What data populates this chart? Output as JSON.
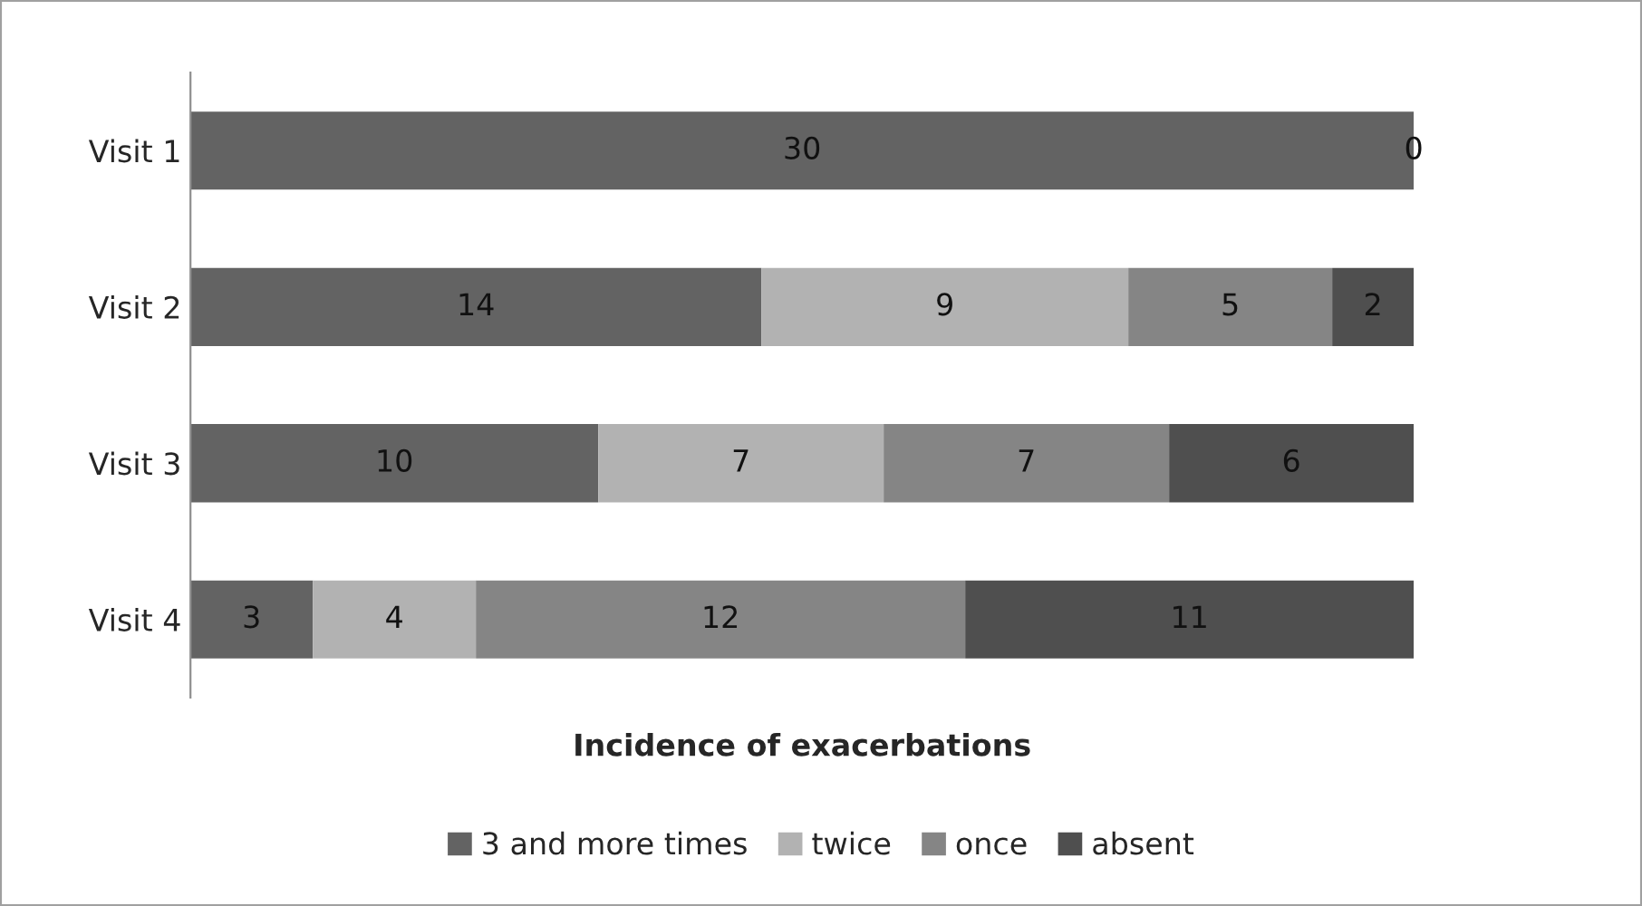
{
  "chart_data": {
    "type": "bar",
    "orientation": "horizontal",
    "stacked": true,
    "categories": [
      "Visit 1",
      "Visit 2",
      "Visit 3",
      "Visit 4"
    ],
    "xlabel": "Incidence of exacerbations",
    "series": [
      {
        "name": "3 and more times",
        "color": "#636363",
        "values": [
          30,
          14,
          10,
          3
        ],
        "value_labels": [
          "30",
          "14",
          "10",
          "3"
        ]
      },
      {
        "name": "twice",
        "color": "#b2b2b2",
        "values": [
          0,
          9,
          7,
          4
        ],
        "value_labels": [
          null,
          "9",
          "7",
          "4"
        ]
      },
      {
        "name": "once",
        "color": "#858585",
        "values": [
          0,
          5,
          7,
          12
        ],
        "value_labels": [
          null,
          "5",
          "7",
          "12"
        ]
      },
      {
        "name": "absent",
        "color": "#4f4f4f",
        "values": [
          0,
          2,
          6,
          11
        ],
        "value_labels": [
          "0",
          "2",
          "6",
          "11"
        ]
      }
    ],
    "legend": "bottom"
  }
}
